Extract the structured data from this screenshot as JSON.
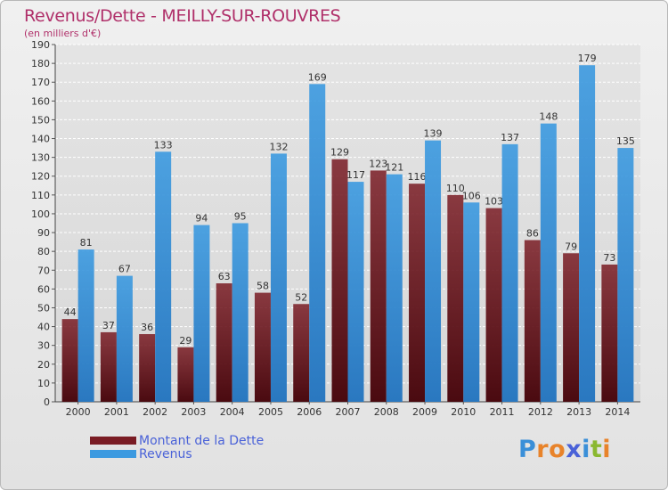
{
  "title": "Revenus/Dette - MEILLY-SUR-ROUVRES",
  "subtitle": "(en milliers d'€)",
  "colors": {
    "dette": "#7a1c24",
    "revenus": "#3c9ae0",
    "title": "#b0306a",
    "legend_text": "#4a62d8"
  },
  "legend": [
    {
      "label": "Montant de la Dette",
      "color_key": "dette"
    },
    {
      "label": "Revenus",
      "color_key": "revenus"
    }
  ],
  "logo": {
    "letters": [
      "P",
      "r",
      "o",
      "x",
      "i",
      "t",
      "i"
    ],
    "colors": [
      "#3a8fd8",
      "#e8832a",
      "#e8832a",
      "#4a62d8",
      "#3a8fd8",
      "#8ab830",
      "#e8832a"
    ]
  },
  "chart_data": {
    "type": "bar",
    "categories": [
      "2000",
      "2001",
      "2002",
      "2003",
      "2004",
      "2005",
      "2006",
      "2007",
      "2008",
      "2009",
      "2010",
      "2011",
      "2012",
      "2013",
      "2014"
    ],
    "series": [
      {
        "name": "Montant de la Dette",
        "values": [
          44,
          37,
          36,
          29,
          63,
          58,
          52,
          129,
          123,
          116,
          110,
          103,
          86,
          79,
          73
        ]
      },
      {
        "name": "Revenus",
        "values": [
          81,
          67,
          133,
          94,
          95,
          132,
          169,
          117,
          121,
          139,
          106,
          137,
          148,
          179,
          135
        ]
      }
    ],
    "ylim": [
      0,
      190
    ],
    "ytick_step": 10,
    "grid": true,
    "legend_position": "bottom-left"
  }
}
